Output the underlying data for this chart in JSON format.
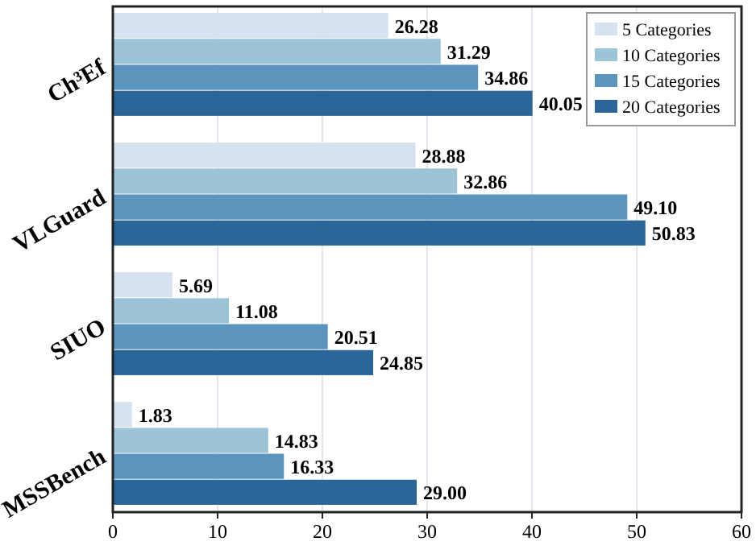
{
  "chart_data": {
    "type": "bar",
    "orientation": "horizontal",
    "categories": [
      "Ch³Ef",
      "VLGuard",
      "SIUO",
      "MSSBench"
    ],
    "series": [
      {
        "name": "5 Categories",
        "color": "#d6e2ef",
        "values": [
          26.28,
          28.88,
          5.69,
          1.83
        ],
        "value_labels": [
          "26.28",
          "28.88",
          "5.69",
          "1.83"
        ]
      },
      {
        "name": "10 Categories",
        "color": "#9dc3d6",
        "values": [
          31.29,
          32.86,
          11.08,
          14.83
        ],
        "value_labels": [
          "31.29",
          "32.86",
          "11.08",
          "14.83"
        ]
      },
      {
        "name": "15 Categories",
        "color": "#5b94bd",
        "values": [
          34.86,
          49.1,
          20.51,
          16.33
        ],
        "value_labels": [
          "34.86",
          "49.10",
          "20.51",
          "16.33"
        ]
      },
      {
        "name": "20 Categories",
        "color": "#2c6699",
        "values": [
          40.05,
          50.83,
          24.85,
          29.0
        ],
        "value_labels": [
          "40.05",
          "50.83",
          "24.85",
          "29.00"
        ]
      }
    ],
    "xlim": [
      0,
      60
    ],
    "xticks": [
      0,
      10,
      20,
      30,
      40,
      50,
      60
    ],
    "grid": "x",
    "legend": "top right"
  }
}
